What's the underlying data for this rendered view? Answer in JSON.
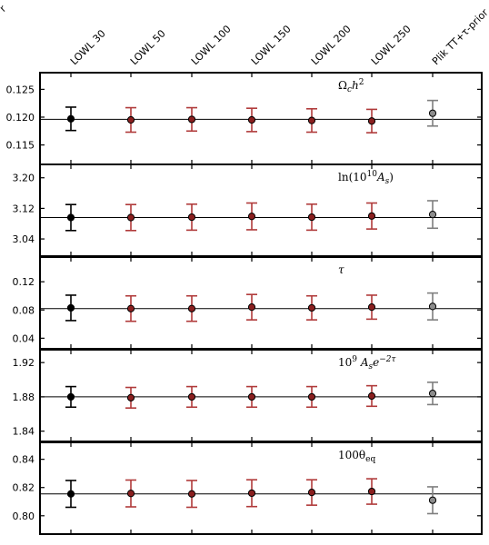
{
  "corner_fragment": "r",
  "chart_data": {
    "type": "scatter",
    "categories": [
      "LOWL 30",
      "LOWL 50",
      "LOWL 100",
      "LOWL 150",
      "LOWL 200",
      "LOWL 250",
      "Plik TT+τ-prior"
    ],
    "colors": {
      "baseline": "#000000",
      "lowl": "#b03a3a",
      "plik": "#7f7f7f",
      "marker_fill_lowl": "#8a1f1f",
      "marker_fill_plik": "#8c8c8c"
    },
    "panels": [
      {
        "label": "Ωch²",
        "label_tex": {
          "main": "Ω",
          "sub": "c",
          "main2": "h",
          "sup": "2"
        },
        "ylim": [
          0.1115,
          0.128
        ],
        "yticks": [
          0.115,
          0.12,
          0.125
        ],
        "yticklabels": [
          "0.115",
          "0.120",
          "0.125"
        ],
        "reference_line": 0.1196,
        "values": [
          0.1197,
          0.1195,
          0.1196,
          0.1195,
          0.1194,
          0.1193,
          0.1207
        ],
        "errors": [
          0.0021,
          0.0022,
          0.0021,
          0.0021,
          0.0021,
          0.0021,
          0.0023
        ]
      },
      {
        "label": "ln(10¹⁰As)",
        "label_tex": {
          "main": "ln(10",
          "sup": "10",
          "main2": "A",
          "sub": "s",
          "close": ")"
        },
        "ylim": [
          2.995,
          3.235
        ],
        "yticks": [
          3.04,
          3.12,
          3.2
        ],
        "yticklabels": [
          "3.04",
          "3.12",
          "3.20"
        ],
        "reference_line": 3.096,
        "values": [
          3.096,
          3.096,
          3.097,
          3.099,
          3.097,
          3.1,
          3.104
        ],
        "errors": [
          0.034,
          0.034,
          0.034,
          0.035,
          0.034,
          0.034,
          0.036
        ]
      },
      {
        "label": "τ",
        "ylim": [
          0.025,
          0.155
        ],
        "yticks": [
          0.04,
          0.08,
          0.12
        ],
        "yticklabels": [
          "0.04",
          "0.08",
          "0.12"
        ],
        "reference_line": 0.082,
        "values": [
          0.083,
          0.082,
          0.082,
          0.084,
          0.083,
          0.084,
          0.085
        ],
        "errors": [
          0.018,
          0.018,
          0.018,
          0.018,
          0.017,
          0.017,
          0.019
        ]
      },
      {
        "label": "10⁹Ase⁻²τ",
        "label_tex": {
          "pre": "10",
          "presup": "9",
          "main": "A",
          "sub": "s",
          "main2": "e",
          "sup": "−2τ"
        },
        "ylim": [
          1.828,
          1.935
        ],
        "yticks": [
          1.84,
          1.88,
          1.92
        ],
        "yticklabels": [
          "1.84",
          "1.88",
          "1.92"
        ],
        "reference_line": 1.88,
        "values": [
          1.88,
          1.879,
          1.88,
          1.88,
          1.88,
          1.881,
          1.884
        ],
        "errors": [
          0.012,
          0.012,
          0.012,
          0.012,
          0.012,
          0.012,
          0.013
        ]
      },
      {
        "label": "100θeq",
        "label_tex": {
          "main": "100θ",
          "sub": "eq"
        },
        "ylim": [
          0.787,
          0.852
        ],
        "yticks": [
          0.8,
          0.82,
          0.84
        ],
        "yticklabels": [
          "0.80",
          "0.82",
          "0.84"
        ],
        "reference_line": 0.8155,
        "values": [
          0.8155,
          0.8158,
          0.8155,
          0.816,
          0.8165,
          0.8172,
          0.811
        ],
        "errors": [
          0.0095,
          0.0095,
          0.0095,
          0.0095,
          0.009,
          0.009,
          0.0095
        ]
      }
    ],
    "grid": false,
    "legend": "none"
  }
}
